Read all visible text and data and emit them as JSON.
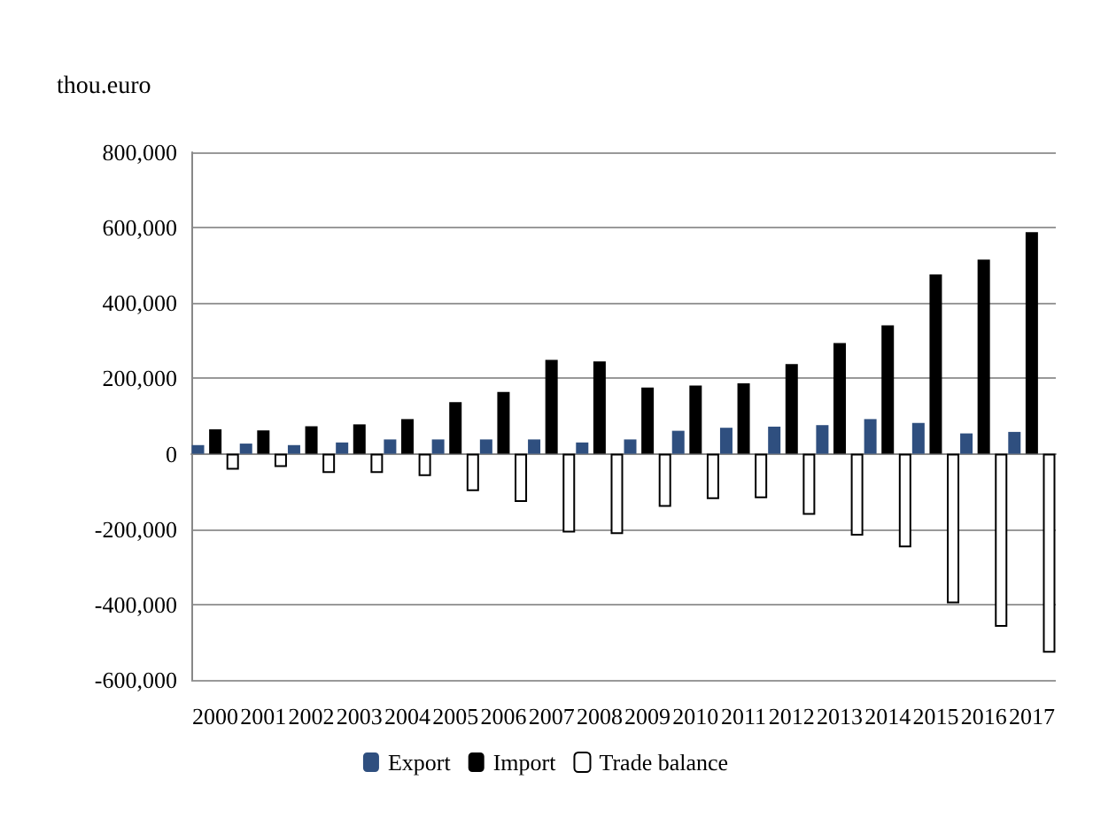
{
  "chart_data": {
    "type": "bar",
    "ylabel": "thou.euro",
    "categories": [
      "2000",
      "2001",
      "2002",
      "2003",
      "2004",
      "2005",
      "2006",
      "2007",
      "2008",
      "2009",
      "2010",
      "2011",
      "2012",
      "2013",
      "2014",
      "2015",
      "2016",
      "2017"
    ],
    "series": [
      {
        "name": "Export",
        "color": "#2f4f7f",
        "values": [
          23000,
          27000,
          23000,
          30000,
          38000,
          38000,
          38000,
          38000,
          30000,
          38000,
          61000,
          69000,
          72000,
          76000,
          92000,
          82000,
          54000,
          58000
        ]
      },
      {
        "name": "Import",
        "color": "#000000",
        "values": [
          65000,
          62000,
          73000,
          78000,
          92000,
          137000,
          164000,
          249000,
          245000,
          176000,
          181000,
          187000,
          238000,
          294000,
          341000,
          476000,
          515000,
          588000
        ]
      },
      {
        "name": "Trade balance",
        "color": "#ffffff",
        "values": [
          -42000,
          -35000,
          -51000,
          -51000,
          -59000,
          -99000,
          -128000,
          -209000,
          -213000,
          -141000,
          -120000,
          -118000,
          -162000,
          -217000,
          -248000,
          -397000,
          -459000,
          -528000
        ]
      }
    ],
    "ylim": [
      -600000,
      800000
    ],
    "yticks": [
      {
        "value": -600000,
        "label": "-600,000"
      },
      {
        "value": -400000,
        "label": "-400,000"
      },
      {
        "value": -200000,
        "label": "-200,000"
      },
      {
        "value": 0,
        "label": "0"
      },
      {
        "value": 200000,
        "label": "200,000"
      },
      {
        "value": 400000,
        "label": "400,000"
      },
      {
        "value": 600000,
        "label": "600,000"
      },
      {
        "value": 800000,
        "label": "800,000"
      }
    ],
    "grid": "y",
    "legend": "bottom"
  }
}
